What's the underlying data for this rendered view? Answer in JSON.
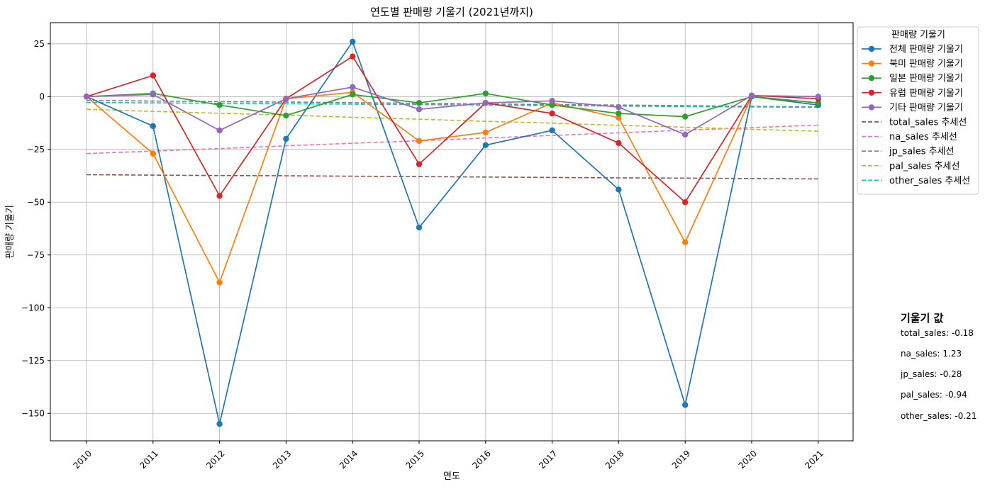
{
  "chart_data": {
    "type": "line",
    "title": "연도별 판매량 기울기 (2021년까지)",
    "xlabel": "연도",
    "ylabel": "판매량 기울기",
    "x": [
      2010,
      2011,
      2012,
      2013,
      2014,
      2015,
      2016,
      2017,
      2018,
      2019,
      2020,
      2021
    ],
    "ylim": [
      -163,
      35
    ],
    "yticks": [
      25,
      0,
      -25,
      -50,
      -75,
      -100,
      -125,
      -150
    ],
    "ytick_labels": [
      "25",
      "0",
      "−25",
      "−50",
      "−75",
      "−100",
      "−125",
      "−150"
    ],
    "grid": true,
    "legend_title": "판매량 기울기",
    "legend_position": "outside top-right",
    "series": [
      {
        "name": "전체 판매량 기울기",
        "color": "#1f77b4",
        "style": "line-marker",
        "values": [
          0,
          -14,
          -155,
          -20,
          26,
          -62,
          -23,
          -16,
          -44,
          -146,
          0,
          -4
        ]
      },
      {
        "name": "북미 판매량 기울기",
        "color": "#ff7f0e",
        "style": "line-marker",
        "values": [
          0,
          -27,
          -88,
          -1,
          2,
          -21,
          -17,
          -3,
          -10,
          -69,
          0,
          -3
        ]
      },
      {
        "name": "일본 판매량 기울기",
        "color": "#2ca02c",
        "style": "line-marker",
        "values": [
          0,
          1.5,
          -4,
          -9,
          1,
          -3,
          1.5,
          -4,
          -8,
          -9.5,
          0,
          -3
        ]
      },
      {
        "name": "유럽 판매량 기울기",
        "color": "#d62728",
        "style": "line-marker",
        "values": [
          0,
          10,
          -47,
          -1,
          19,
          -32,
          -3,
          -8,
          -22,
          -50,
          0.5,
          -1
        ]
      },
      {
        "name": "기타 판매량 기울기",
        "color": "#9467bd",
        "style": "line-marker",
        "values": [
          0,
          1,
          -16,
          -1,
          4.5,
          -6,
          -3,
          -2,
          -5,
          -18,
          0.5,
          0
        ]
      },
      {
        "name": "total_sales 추세선",
        "color": "#8c564b",
        "style": "dashed",
        "values": [
          -37,
          -37.2,
          -37.4,
          -37.5,
          -37.7,
          -37.9,
          -38.1,
          -38.3,
          -38.5,
          -38.6,
          -38.8,
          -39
        ]
      },
      {
        "name": "na_sales 추세선",
        "color": "#e377c2",
        "style": "dashed",
        "values": [
          -27,
          -25.8,
          -24.6,
          -23.3,
          -22.1,
          -20.9,
          -19.6,
          -18.4,
          -17.2,
          -15.9,
          -14.7,
          -13.5
        ]
      },
      {
        "name": "jp_sales 추세선",
        "color": "#7f7f7f",
        "style": "dashed",
        "values": [
          -1.8,
          -2.1,
          -2.4,
          -2.6,
          -2.9,
          -3.2,
          -3.5,
          -3.8,
          -4.0,
          -4.3,
          -4.6,
          -4.9
        ]
      },
      {
        "name": "pal_sales 추세선",
        "color": "#bcbd22",
        "style": "dashed",
        "values": [
          -6,
          -7,
          -7.9,
          -8.8,
          -9.8,
          -10.7,
          -11.7,
          -12.6,
          -13.6,
          -14.5,
          -15.5,
          -16.4
        ]
      },
      {
        "name": "other_sales 추세선",
        "color": "#17becf",
        "style": "dashed",
        "values": [
          -2.8,
          -3.0,
          -3.2,
          -3.4,
          -3.6,
          -3.8,
          -4.0,
          -4.3,
          -4.5,
          -4.7,
          -4.9,
          -5.1
        ]
      }
    ],
    "annotation": {
      "title": "기울기 값",
      "lines": [
        "total_sales: -0.18",
        "na_sales: 1.23",
        "jp_sales: -0.28",
        "pal_sales: -0.94",
        "other_sales: -0.21"
      ]
    }
  }
}
